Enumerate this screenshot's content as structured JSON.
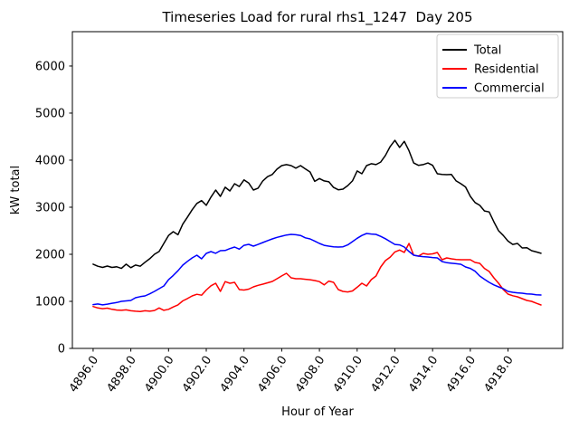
{
  "figure": {
    "title": "Timeseries Load for rural rhs1_1247  Day 205",
    "background": "#ffffff",
    "spine_color": "#000000"
  },
  "chart_data": {
    "type": "line",
    "title": "Timeseries Load for rural rhs1_1247  Day 205",
    "xlabel": "Hour of Year",
    "ylabel": "kW total",
    "grid": false,
    "legend_position": "upper right",
    "legend_border_color": "#cccccc",
    "xlim": [
      4894.9,
      4920.9
    ],
    "ylim": [
      0,
      6730
    ],
    "yticks": [
      0,
      1000,
      2000,
      3000,
      4000,
      5000,
      6000
    ],
    "ytick_labels": [
      "0",
      "1000",
      "2000",
      "3000",
      "4000",
      "5000",
      "6000"
    ],
    "xticks": [
      4896,
      4898,
      4900,
      4902,
      4904,
      4906,
      4908,
      4910,
      4912,
      4914,
      4916,
      4918
    ],
    "xtick_labels": [
      "4896.0",
      "4898.0",
      "4900.0",
      "4902.0",
      "4904.0",
      "4906.0",
      "4908.0",
      "4910.0",
      "4912.0",
      "4914.0",
      "4916.0",
      "4918.0"
    ],
    "x_start": 4896.0,
    "x_step": 0.25,
    "series": [
      {
        "name": "Total",
        "color": "#000000",
        "values": [
          1790,
          1745,
          1720,
          1750,
          1720,
          1735,
          1700,
          1790,
          1715,
          1770,
          1745,
          1830,
          1905,
          2000,
          2060,
          2230,
          2400,
          2480,
          2415,
          2640,
          2790,
          2945,
          3080,
          3140,
          3040,
          3215,
          3365,
          3230,
          3425,
          3345,
          3500,
          3440,
          3580,
          3515,
          3365,
          3405,
          3560,
          3650,
          3695,
          3810,
          3885,
          3905,
          3885,
          3830,
          3885,
          3815,
          3750,
          3550,
          3610,
          3560,
          3540,
          3420,
          3370,
          3385,
          3460,
          3560,
          3770,
          3712,
          3885,
          3925,
          3905,
          3960,
          4100,
          4290,
          4420,
          4270,
          4400,
          4200,
          3940,
          3890,
          3905,
          3940,
          3890,
          3712,
          3695,
          3692,
          3695,
          3560,
          3500,
          3430,
          3230,
          3100,
          3040,
          2920,
          2900,
          2690,
          2500,
          2400,
          2280,
          2210,
          2230,
          2135,
          2140,
          2077,
          2050,
          2020
        ]
      },
      {
        "name": "Residential",
        "color": "#ff0000",
        "values": [
          890,
          860,
          845,
          855,
          830,
          815,
          810,
          820,
          800,
          790,
          785,
          800,
          790,
          805,
          860,
          810,
          830,
          880,
          925,
          1010,
          1060,
          1115,
          1150,
          1130,
          1240,
          1330,
          1385,
          1212,
          1420,
          1385,
          1404,
          1250,
          1240,
          1260,
          1308,
          1340,
          1365,
          1395,
          1423,
          1480,
          1540,
          1596,
          1500,
          1481,
          1481,
          1470,
          1460,
          1442,
          1420,
          1350,
          1430,
          1404,
          1250,
          1212,
          1200,
          1221,
          1300,
          1385,
          1327,
          1462,
          1538,
          1730,
          1865,
          1940,
          2050,
          2090,
          2040,
          2230,
          1980,
          1962,
          2019,
          2000,
          2010,
          2038,
          1885,
          1923,
          1904,
          1890,
          1885,
          1885,
          1885,
          1827,
          1808,
          1700,
          1635,
          1500,
          1385,
          1250,
          1154,
          1120,
          1096,
          1058,
          1019,
          1000,
          960,
          923
        ]
      },
      {
        "name": "Commercial",
        "color": "#0000ff",
        "values": [
          930,
          945,
          925,
          940,
          960,
          975,
          1000,
          1010,
          1020,
          1077,
          1100,
          1115,
          1160,
          1212,
          1270,
          1327,
          1460,
          1550,
          1650,
          1769,
          1850,
          1923,
          1981,
          1904,
          2019,
          2058,
          2020,
          2077,
          2080,
          2120,
          2154,
          2110,
          2190,
          2212,
          2173,
          2210,
          2250,
          2290,
          2327,
          2360,
          2385,
          2410,
          2423,
          2415,
          2400,
          2350,
          2327,
          2280,
          2230,
          2190,
          2173,
          2160,
          2154,
          2160,
          2200,
          2269,
          2340,
          2400,
          2442,
          2430,
          2423,
          2380,
          2330,
          2269,
          2210,
          2200,
          2154,
          2060,
          1981,
          1962,
          1950,
          1942,
          1930,
          1923,
          1846,
          1820,
          1810,
          1800,
          1788,
          1730,
          1700,
          1640,
          1538,
          1470,
          1404,
          1350,
          1308,
          1270,
          1212,
          1192,
          1180,
          1173,
          1160,
          1154,
          1140,
          1135
        ]
      }
    ]
  }
}
